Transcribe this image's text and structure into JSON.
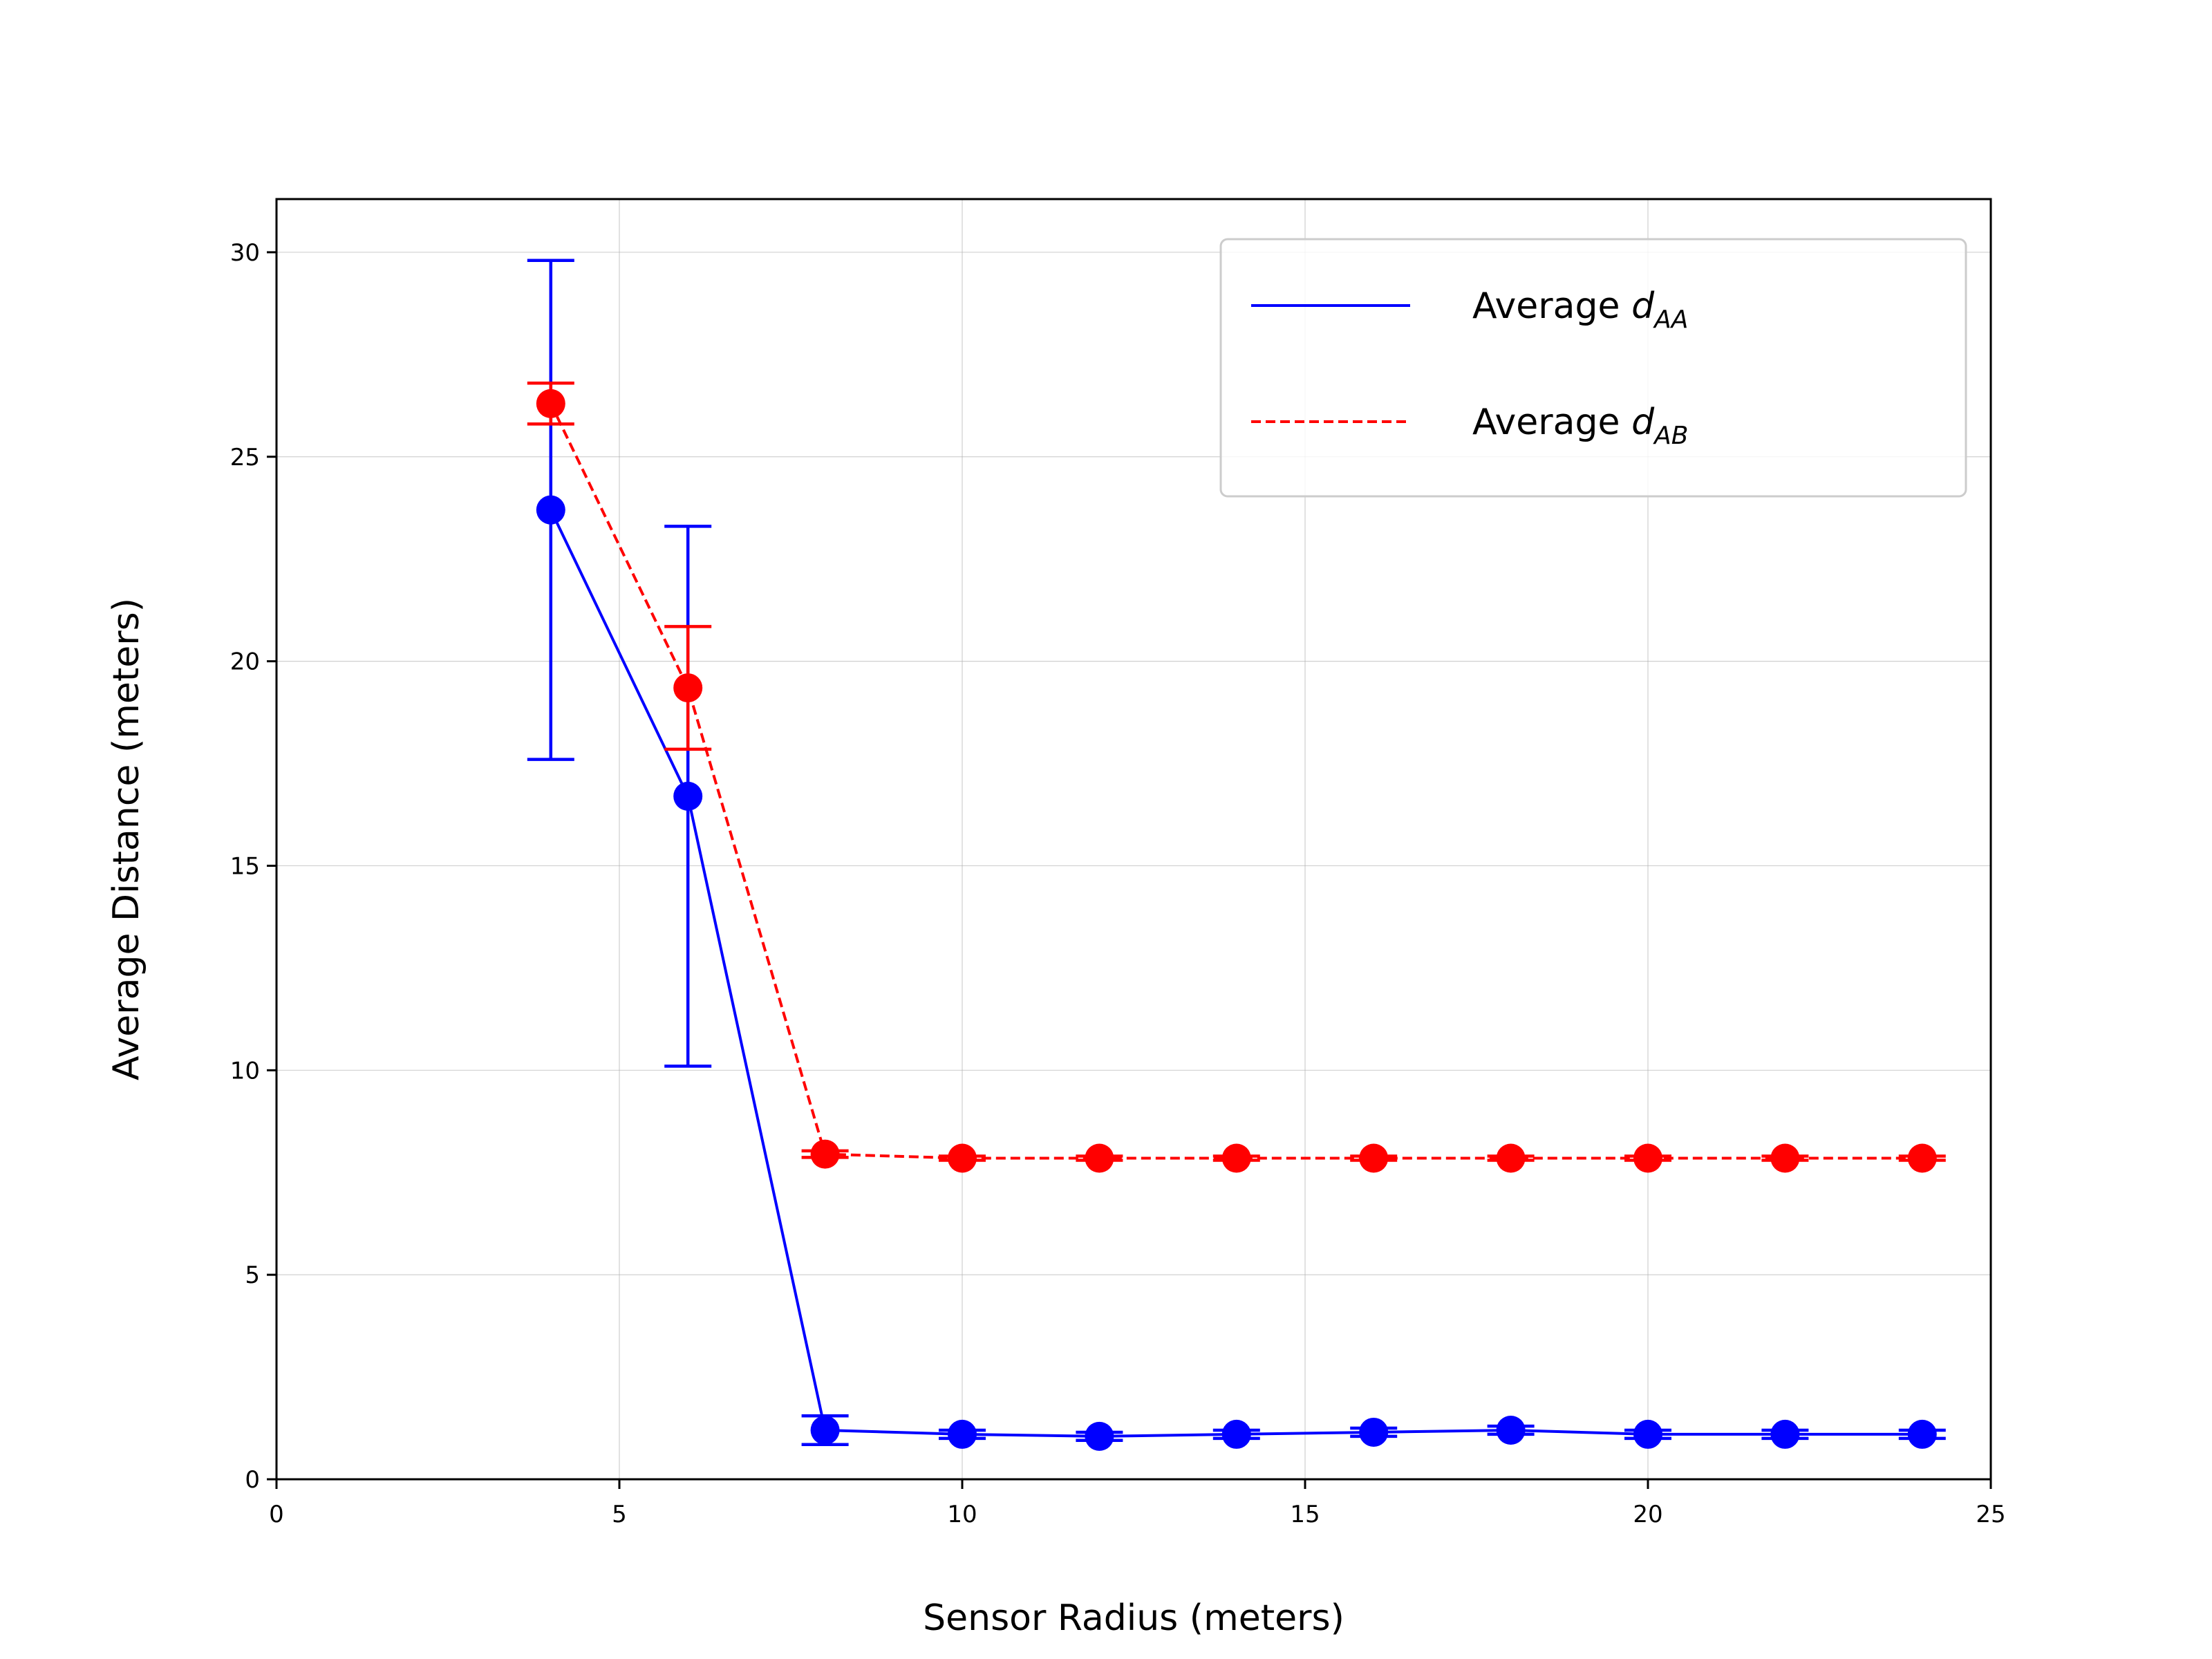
{
  "chart_data": {
    "type": "line",
    "xlabel": "Sensor Radius (meters)",
    "ylabel": "Average Distance (meters)",
    "xlim": [
      0,
      25
    ],
    "ylim": [
      0,
      31.3
    ],
    "xticks": [
      0,
      5,
      10,
      15,
      20,
      25
    ],
    "yticks": [
      0,
      5,
      10,
      15,
      20,
      25,
      30
    ],
    "grid": true,
    "legend_position": "top-right",
    "series": [
      {
        "name": "Average d_AA",
        "label_base": "Average ",
        "label_var": "d",
        "label_sub": "AA",
        "color": "#0000ff",
        "line_style": "solid",
        "x": [
          4,
          6,
          8,
          10,
          12,
          14,
          16,
          18,
          20,
          22,
          24
        ],
        "y": [
          23.7,
          16.7,
          1.2,
          1.1,
          1.05,
          1.1,
          1.15,
          1.2,
          1.1,
          1.1,
          1.1
        ],
        "yerr": [
          6.1,
          6.6,
          0.35,
          0.1,
          0.1,
          0.1,
          0.1,
          0.1,
          0.1,
          0.1,
          0.1
        ]
      },
      {
        "name": "Average d_AB",
        "label_base": "Average ",
        "label_var": "d",
        "label_sub": "AB",
        "color": "#ff0000",
        "line_style": "dashed",
        "x": [
          4,
          6,
          8,
          10,
          12,
          14,
          16,
          18,
          20,
          22,
          24
        ],
        "y": [
          26.3,
          19.35,
          7.95,
          7.85,
          7.85,
          7.85,
          7.85,
          7.85,
          7.85,
          7.85,
          7.85
        ],
        "yerr": [
          0.5,
          1.5,
          0.08,
          0.05,
          0.05,
          0.05,
          0.05,
          0.05,
          0.05,
          0.05,
          0.05
        ]
      }
    ]
  }
}
